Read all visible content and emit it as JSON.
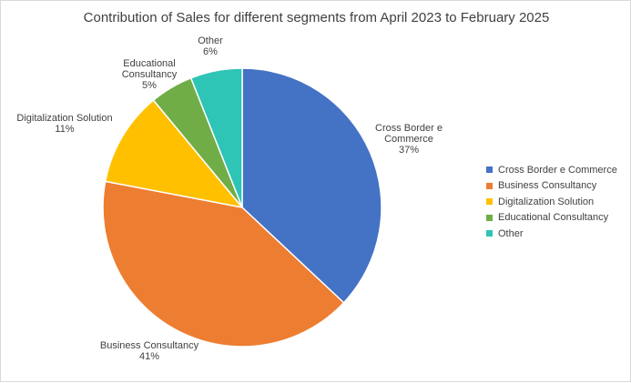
{
  "chart_data": {
    "type": "pie",
    "title": "Contribution of Sales for different segments from April 2023 to February 2025",
    "categories": [
      "Cross Border e Commerce",
      "Business Consultancy",
      "Digitalization Solution",
      "Educational Consultancy",
      "Other"
    ],
    "values": [
      37,
      41,
      11,
      5,
      6
    ],
    "value_labels": [
      "37%",
      "41%",
      "11%",
      "5%",
      "6%"
    ],
    "slice_label_lines": [
      [
        "Cross Border e",
        "Commerce",
        "37%"
      ],
      [
        "Business Consultancy",
        "41%"
      ],
      [
        "Digitalization Solution",
        "11%"
      ],
      [
        "Educational",
        "Consultancy",
        "5%"
      ],
      [
        "Other",
        "6%"
      ]
    ],
    "colors": [
      "#4472c4",
      "#ed7d31",
      "#ffc000",
      "#70ad47",
      "#2ec4b6"
    ],
    "legend_position": "right",
    "start_angle": "12 o'clock, clockwise"
  }
}
